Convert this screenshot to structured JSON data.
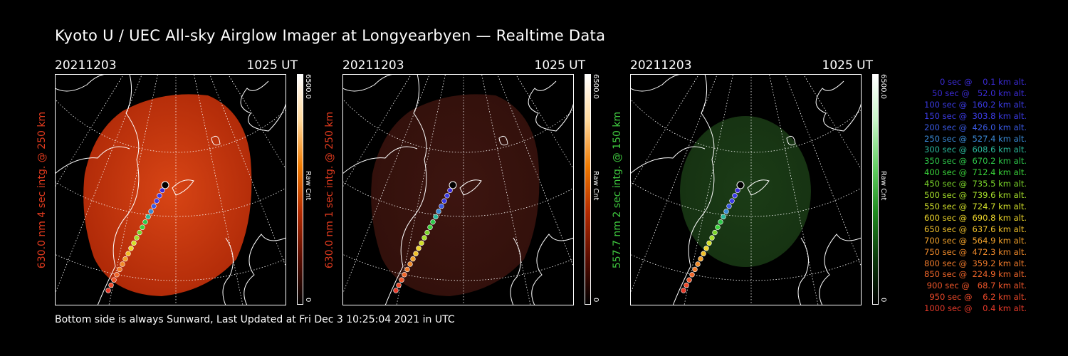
{
  "title": "Kyoto U / UEC All-sky Airglow Imager at Longyearbyen — Realtime Data",
  "panels": [
    {
      "date": "20211203",
      "time": "1025 UT",
      "side_label": "630.0 nm 4 sec intg. @ 250 km",
      "side_color": "#e03a1e",
      "colorbar_max": "6500.0",
      "colorbar_unit": "Raw Cnt",
      "colorbar_min": "0",
      "bar_gradient": [
        "#000000",
        "#5a0c00",
        "#b32a00",
        "#f07a00",
        "#ffd89a",
        "#ffffff"
      ],
      "disk_color_center": "#d84515",
      "disk_color_edge": "#b02a08"
    },
    {
      "date": "20211203",
      "time": "1025 UT",
      "side_label": "630.0 nm 1 sec intg. @ 250 km",
      "side_color": "#e03a1e",
      "colorbar_max": "6500.0",
      "colorbar_unit": "Raw Cnt",
      "colorbar_min": "0",
      "bar_gradient": [
        "#000000",
        "#5a0c00",
        "#b32a00",
        "#f07a00",
        "#ffd89a",
        "#ffffff"
      ],
      "disk_color_center": "#3d1510",
      "disk_color_edge": "#32100b"
    },
    {
      "date": "20211203",
      "time": "1025 UT",
      "side_label": "557.7 nm 2 sec intg. @ 150 km",
      "side_color": "#3fc83f",
      "colorbar_max": "6500.0",
      "colorbar_unit": "Raw Cnt",
      "colorbar_min": "0",
      "bar_gradient": [
        "#000000",
        "#0b3a0b",
        "#1f8a1f",
        "#65d065",
        "#c8f5c8",
        "#ffffff"
      ],
      "disk_color_center": "#1b3c16",
      "disk_color_edge": "#163212"
    }
  ],
  "footer": "Bottom side is always Sunward, Last Updated at Fri Dec  3 10:25:04 2021 in UTC",
  "legend": [
    {
      "text": "   0 sec @    0.1 km alt.",
      "color": "#3b2bd6"
    },
    {
      "text": "  50 sec @   52.0 km alt.",
      "color": "#3b2bd6"
    },
    {
      "text": " 100 sec @  160.2 km alt.",
      "color": "#3b3be6"
    },
    {
      "text": " 150 sec @  303.8 km alt.",
      "color": "#3b3be6"
    },
    {
      "text": " 200 sec @  426.0 km alt.",
      "color": "#3a5ae6"
    },
    {
      "text": " 250 sec @  527.4 km alt.",
      "color": "#3a8ad6"
    },
    {
      "text": " 300 sec @  608.6 km alt.",
      "color": "#2ab89a"
    },
    {
      "text": " 350 sec @  670.2 km alt.",
      "color": "#2ec84a"
    },
    {
      "text": " 400 sec @  712.4 km alt.",
      "color": "#3ad43a"
    },
    {
      "text": " 450 sec @  735.5 km alt.",
      "color": "#7ad42a"
    },
    {
      "text": " 500 sec @  739.6 km alt.",
      "color": "#a6e02a"
    },
    {
      "text": " 550 sec @  724.7 km alt.",
      "color": "#d2e02a"
    },
    {
      "text": " 600 sec @  690.8 km alt.",
      "color": "#eed62a"
    },
    {
      "text": " 650 sec @  637.6 km alt.",
      "color": "#f0c02a"
    },
    {
      "text": " 700 sec @  564.9 km alt.",
      "color": "#f0a02a"
    },
    {
      "text": " 750 sec @  472.3 km alt.",
      "color": "#f08a2a"
    },
    {
      "text": " 800 sec @  359.2 km alt.",
      "color": "#f07a2a"
    },
    {
      "text": " 850 sec @  224.9 km alt.",
      "color": "#f0662a"
    },
    {
      "text": " 900 sec @   68.7 km alt.",
      "color": "#f0562a"
    },
    {
      "text": " 950 sec @    6.2 km alt.",
      "color": "#ee4a2a"
    },
    {
      "text": "1000 sec @    0.4 km alt.",
      "color": "#e83a2a"
    }
  ]
}
